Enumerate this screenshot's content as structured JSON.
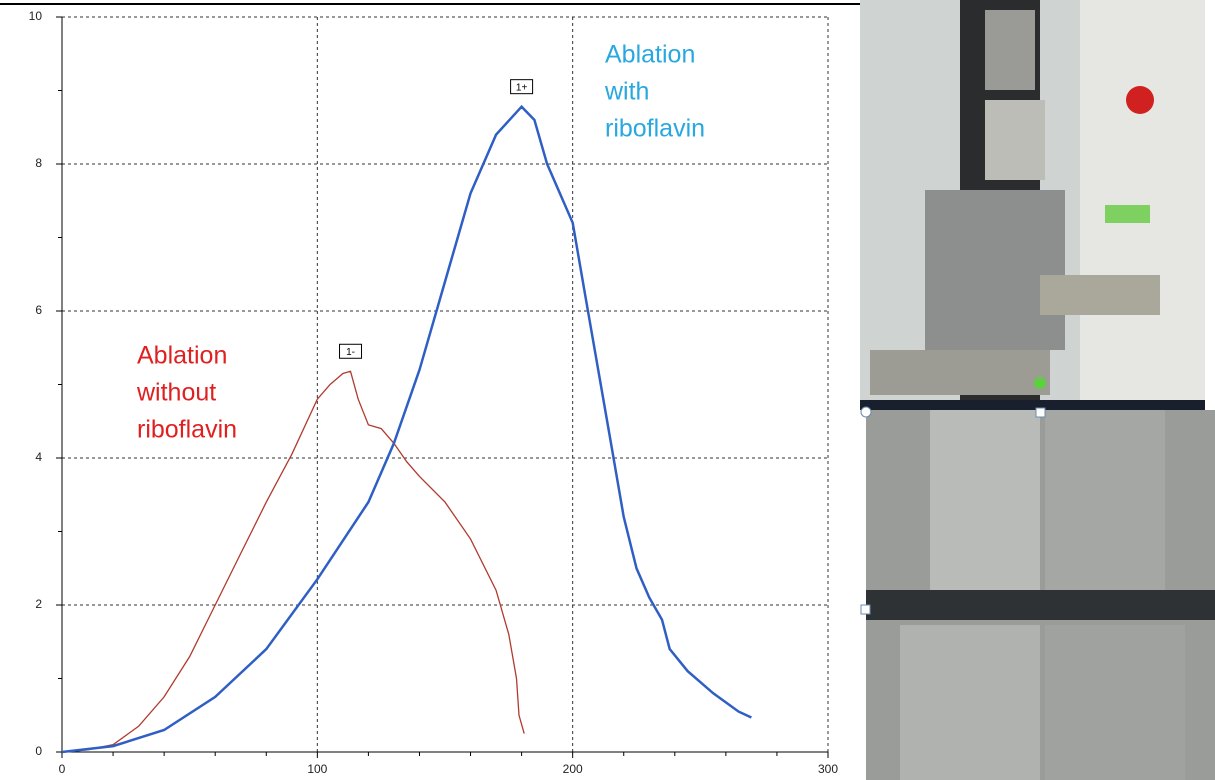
{
  "chart_data": {
    "type": "line",
    "xlim": [
      0,
      300
    ],
    "ylim": [
      0,
      10
    ],
    "xticks": [
      0,
      100,
      200,
      300
    ],
    "yticks": [
      0,
      2,
      4,
      6,
      8,
      10
    ],
    "xminorticks": [
      20,
      40,
      60,
      80,
      120,
      140,
      160,
      180,
      220,
      240,
      260,
      280
    ],
    "yminorticks": [
      1,
      3,
      5,
      7,
      9
    ],
    "grid": true,
    "series": [
      {
        "name": "Ablation without riboflavin",
        "color": "#b03a2e",
        "peak_label": "1-",
        "x": [
          0,
          10,
          20,
          30,
          40,
          50,
          60,
          70,
          80,
          90,
          100,
          105,
          110,
          113,
          116,
          120,
          125,
          130,
          135,
          140,
          150,
          160,
          170,
          175,
          178,
          179,
          181
        ],
        "values": [
          0,
          0.03,
          0.1,
          0.35,
          0.75,
          1.3,
          2.0,
          2.7,
          3.4,
          4.05,
          4.8,
          5.0,
          5.15,
          5.18,
          4.8,
          4.45,
          4.4,
          4.2,
          3.95,
          3.75,
          3.4,
          2.9,
          2.2,
          1.6,
          1.0,
          0.5,
          0.25
        ]
      },
      {
        "name": "Ablation with riboflavin",
        "color": "#2f5fc4",
        "peak_label": "1+",
        "x": [
          0,
          20,
          40,
          60,
          80,
          100,
          120,
          130,
          140,
          150,
          160,
          170,
          180,
          185,
          190,
          195,
          200,
          205,
          210,
          215,
          220,
          225,
          230,
          235,
          238,
          245,
          255,
          265,
          270
        ],
        "values": [
          0,
          0.08,
          0.3,
          0.75,
          1.4,
          2.35,
          3.4,
          4.2,
          5.2,
          6.4,
          7.6,
          8.4,
          8.78,
          8.6,
          8.0,
          7.6,
          7.2,
          6.2,
          5.2,
          4.2,
          3.2,
          2.5,
          2.1,
          1.8,
          1.4,
          1.1,
          0.8,
          0.55,
          0.47
        ]
      }
    ],
    "annotations": [
      {
        "lines": [
          "Ablation",
          "without",
          "riboflavin"
        ],
        "color": "#e02020"
      },
      {
        "lines": [
          "Ablation",
          "with",
          "riboflavin"
        ],
        "color": "#29a8e0"
      }
    ]
  }
}
